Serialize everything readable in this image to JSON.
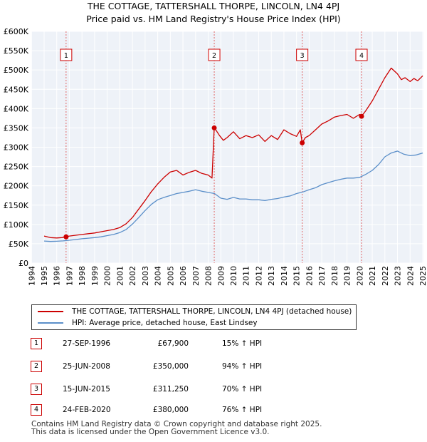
{
  "chart_data": {
    "type": "line",
    "title": "THE COTTAGE, TATTERSHALL THORPE, LINCOLN, LN4 4PJ",
    "subtitle": "Price paid vs. HM Land Registry's House Price Index (HPI)",
    "xlabel": "",
    "ylabel": "",
    "xlim": [
      1995,
      2025
    ],
    "ylim": [
      0,
      600000
    ],
    "x_ticks": [
      "1994",
      "1995",
      "1996",
      "1997",
      "1998",
      "1999",
      "2000",
      "2001",
      "2002",
      "2003",
      "2004",
      "2005",
      "2006",
      "2007",
      "2008",
      "2009",
      "2010",
      "2011",
      "2012",
      "2013",
      "2014",
      "2015",
      "2016",
      "2017",
      "2018",
      "2019",
      "2020",
      "2021",
      "2022",
      "2023",
      "2024",
      "2025"
    ],
    "y_ticks": [
      "£0",
      "£50K",
      "£100K",
      "£150K",
      "£200K",
      "£250K",
      "£300K",
      "£350K",
      "£400K",
      "£450K",
      "£500K",
      "£550K",
      "£600K"
    ],
    "grid": true,
    "series": [
      {
        "name": "THE COTTAGE, TATTERSHALL THORPE, LINCOLN, LN4 4PJ (detached house)",
        "color": "#cc0000",
        "x": [
          1995.0,
          1995.5,
          1996.0,
          1996.4,
          1996.74,
          1997.0,
          1997.5,
          1998.0,
          1998.5,
          1999.0,
          1999.5,
          2000.0,
          2000.5,
          2001.0,
          2001.5,
          2002.0,
          2002.5,
          2003.0,
          2003.5,
          2004.0,
          2004.5,
          2005.0,
          2005.5,
          2006.0,
          2006.5,
          2007.0,
          2007.5,
          2008.0,
          2008.3,
          2008.48,
          2008.6,
          2008.9,
          2009.2,
          2009.5,
          2010.0,
          2010.5,
          2011.0,
          2011.5,
          2012.0,
          2012.5,
          2013.0,
          2013.5,
          2014.0,
          2014.5,
          2015.0,
          2015.3,
          2015.45,
          2015.7,
          2016.0,
          2016.5,
          2017.0,
          2017.5,
          2018.0,
          2018.5,
          2019.0,
          2019.5,
          2020.0,
          2020.15,
          2020.5,
          2021.0,
          2021.5,
          2022.0,
          2022.5,
          2023.0,
          2023.3,
          2023.6,
          2024.0,
          2024.3,
          2024.6,
          2025.0
        ],
        "values": [
          70000,
          66000,
          65000,
          66000,
          67900,
          70000,
          72000,
          74000,
          76000,
          78000,
          81000,
          84000,
          87000,
          92000,
          102000,
          118000,
          140000,
          162000,
          185000,
          205000,
          222000,
          236000,
          240000,
          228000,
          235000,
          240000,
          232000,
          228000,
          220000,
          350000,
          345000,
          330000,
          318000,
          325000,
          340000,
          322000,
          330000,
          325000,
          332000,
          315000,
          330000,
          320000,
          345000,
          335000,
          328000,
          345000,
          311250,
          325000,
          330000,
          345000,
          360000,
          368000,
          378000,
          382000,
          385000,
          375000,
          385000,
          380000,
          395000,
          420000,
          450000,
          480000,
          505000,
          490000,
          475000,
          480000,
          470000,
          478000,
          472000,
          485000
        ]
      },
      {
        "name": "HPI: Average price, detached house, East Lindsey",
        "color": "#5b8fc9",
        "x": [
          1995.0,
          1995.5,
          1996.0,
          1996.5,
          1997.0,
          1997.5,
          1998.0,
          1998.5,
          1999.0,
          1999.5,
          2000.0,
          2000.5,
          2001.0,
          2001.5,
          2002.0,
          2002.5,
          2003.0,
          2003.5,
          2004.0,
          2004.5,
          2005.0,
          2005.5,
          2006.0,
          2006.5,
          2007.0,
          2007.5,
          2008.0,
          2008.5,
          2009.0,
          2009.5,
          2010.0,
          2010.5,
          2011.0,
          2011.5,
          2012.0,
          2012.5,
          2013.0,
          2013.5,
          2014.0,
          2014.5,
          2015.0,
          2015.5,
          2016.0,
          2016.5,
          2017.0,
          2017.5,
          2018.0,
          2018.5,
          2019.0,
          2019.5,
          2020.0,
          2020.5,
          2021.0,
          2021.5,
          2022.0,
          2022.5,
          2023.0,
          2023.5,
          2024.0,
          2024.5,
          2025.0
        ],
        "values": [
          57000,
          56000,
          56500,
          57500,
          59000,
          61000,
          63000,
          64500,
          66000,
          68000,
          71000,
          74000,
          79000,
          87000,
          101000,
          118000,
          136000,
          152000,
          164000,
          170000,
          175000,
          180000,
          183000,
          186000,
          190000,
          186000,
          183000,
          180000,
          168000,
          165000,
          170000,
          166000,
          166000,
          164000,
          164000,
          162000,
          165000,
          167000,
          171000,
          174000,
          180000,
          184000,
          190000,
          195000,
          203000,
          208000,
          213000,
          217000,
          220000,
          220000,
          222000,
          230000,
          240000,
          255000,
          275000,
          285000,
          290000,
          282000,
          278000,
          280000,
          285000
        ]
      }
    ],
    "annotations": [
      {
        "label": "1",
        "x": 1996.74
      },
      {
        "label": "2",
        "x": 2008.48
      },
      {
        "label": "3",
        "x": 2015.45
      },
      {
        "label": "4",
        "x": 2020.15
      }
    ]
  },
  "legend": {
    "property_label": "THE COTTAGE, TATTERSHALL THORPE, LINCOLN, LN4 4PJ (detached house)",
    "hpi_label": "HPI: Average price, detached house, East Lindsey"
  },
  "sales": [
    {
      "num": "1",
      "date": "27-SEP-1996",
      "price": "£67,900",
      "hpi": "15% ↑ HPI"
    },
    {
      "num": "2",
      "date": "25-JUN-2008",
      "price": "£350,000",
      "hpi": "94% ↑ HPI"
    },
    {
      "num": "3",
      "date": "15-JUN-2015",
      "price": "£311,250",
      "hpi": "70% ↑ HPI"
    },
    {
      "num": "4",
      "date": "24-FEB-2020",
      "price": "£380,000",
      "hpi": "76% ↑ HPI"
    }
  ],
  "footer": {
    "line1": "Contains HM Land Registry data © Crown copyright and database right 2025.",
    "line2": "This data is licensed under the Open Government Licence v3.0."
  }
}
